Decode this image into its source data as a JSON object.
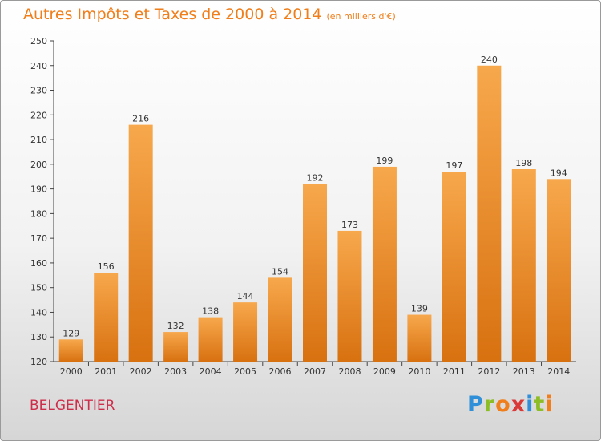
{
  "header": {
    "title": "Autres Impôts et Taxes de 2000 à 2014",
    "unit": "(en milliers d'€)"
  },
  "footer": {
    "commune": "BELGENTIER",
    "logo_letters": [
      "P",
      "r",
      "o",
      "x",
      "i",
      "t",
      "i"
    ],
    "logo_colors": [
      "#2f8fd8",
      "#8cbd24",
      "#f07e1a",
      "#d93a37",
      "#2f8fd8",
      "#8cbd24",
      "#f07e1a"
    ]
  },
  "colors": {
    "bar_top": "#f7a84c",
    "bar_bottom": "#d87110",
    "axis": "#444444",
    "title": "#f07e1a"
  },
  "chart_data": {
    "type": "bar",
    "title": "Autres Impôts et Taxes de 2000 à 2014",
    "subtitle": "(en milliers d'€)",
    "categories": [
      "2000",
      "2001",
      "2002",
      "2003",
      "2004",
      "2005",
      "2006",
      "2007",
      "2008",
      "2009",
      "2010",
      "2011",
      "2012",
      "2013",
      "2014"
    ],
    "values": [
      129,
      156,
      216,
      132,
      138,
      144,
      154,
      192,
      173,
      199,
      139,
      197,
      240,
      198,
      194
    ],
    "ylim": [
      120,
      250
    ],
    "yticks": [
      120,
      130,
      140,
      150,
      160,
      170,
      180,
      190,
      200,
      210,
      220,
      230,
      240,
      250
    ],
    "grid": false,
    "data_labels": true
  }
}
